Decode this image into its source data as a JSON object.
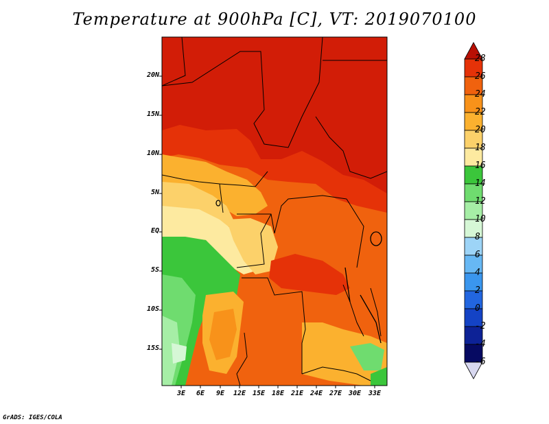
{
  "title": "Temperature at 900hPa [C], VT: 2019070100",
  "credit": "GrADS: IGES/COLA",
  "map": {
    "lat_labels": [
      "20N",
      "15N",
      "10N",
      "5N",
      "EQ",
      "5S",
      "10S",
      "15S"
    ],
    "lon_labels": [
      "3E",
      "6E",
      "9E",
      "12E",
      "15E",
      "18E",
      "21E",
      "24E",
      "27E",
      "30E",
      "33E"
    ],
    "lon_range": [
      0,
      35
    ],
    "lat_range": [
      -20,
      24.5
    ]
  },
  "colorbar": {
    "labels": [
      "28",
      "26",
      "24",
      "22",
      "20",
      "18",
      "16",
      "14",
      "12",
      "10",
      "8",
      "6",
      "4",
      "2",
      "0",
      "-2",
      "-4",
      "-6"
    ],
    "colors": [
      "#d21d07",
      "#e53208",
      "#f0620e",
      "#f8921a",
      "#fbb12f",
      "#fcd16a",
      "#fdeaa0",
      "#3bc63b",
      "#6fdc6f",
      "#a6eea6",
      "#d6f7d6",
      "#9dd4f7",
      "#67b8f4",
      "#3a96ee",
      "#2266e0",
      "#1443c5",
      "#0d2296",
      "#060a62"
    ],
    "top_arrow_color": "#b81004",
    "bottom_arrow_color": "#d8d8f0"
  },
  "zone_colors": {
    "c28": "#d21d07",
    "c26": "#e53208",
    "c24": "#f0620e",
    "c22": "#f8921a",
    "c20": "#fbb12f",
    "c18": "#fcd16a",
    "c16": "#fdeaa0",
    "c14": "#3bc63b",
    "c12": "#6fdc6f",
    "c10": "#a6eea6",
    "c8": "#d6f7d6"
  }
}
